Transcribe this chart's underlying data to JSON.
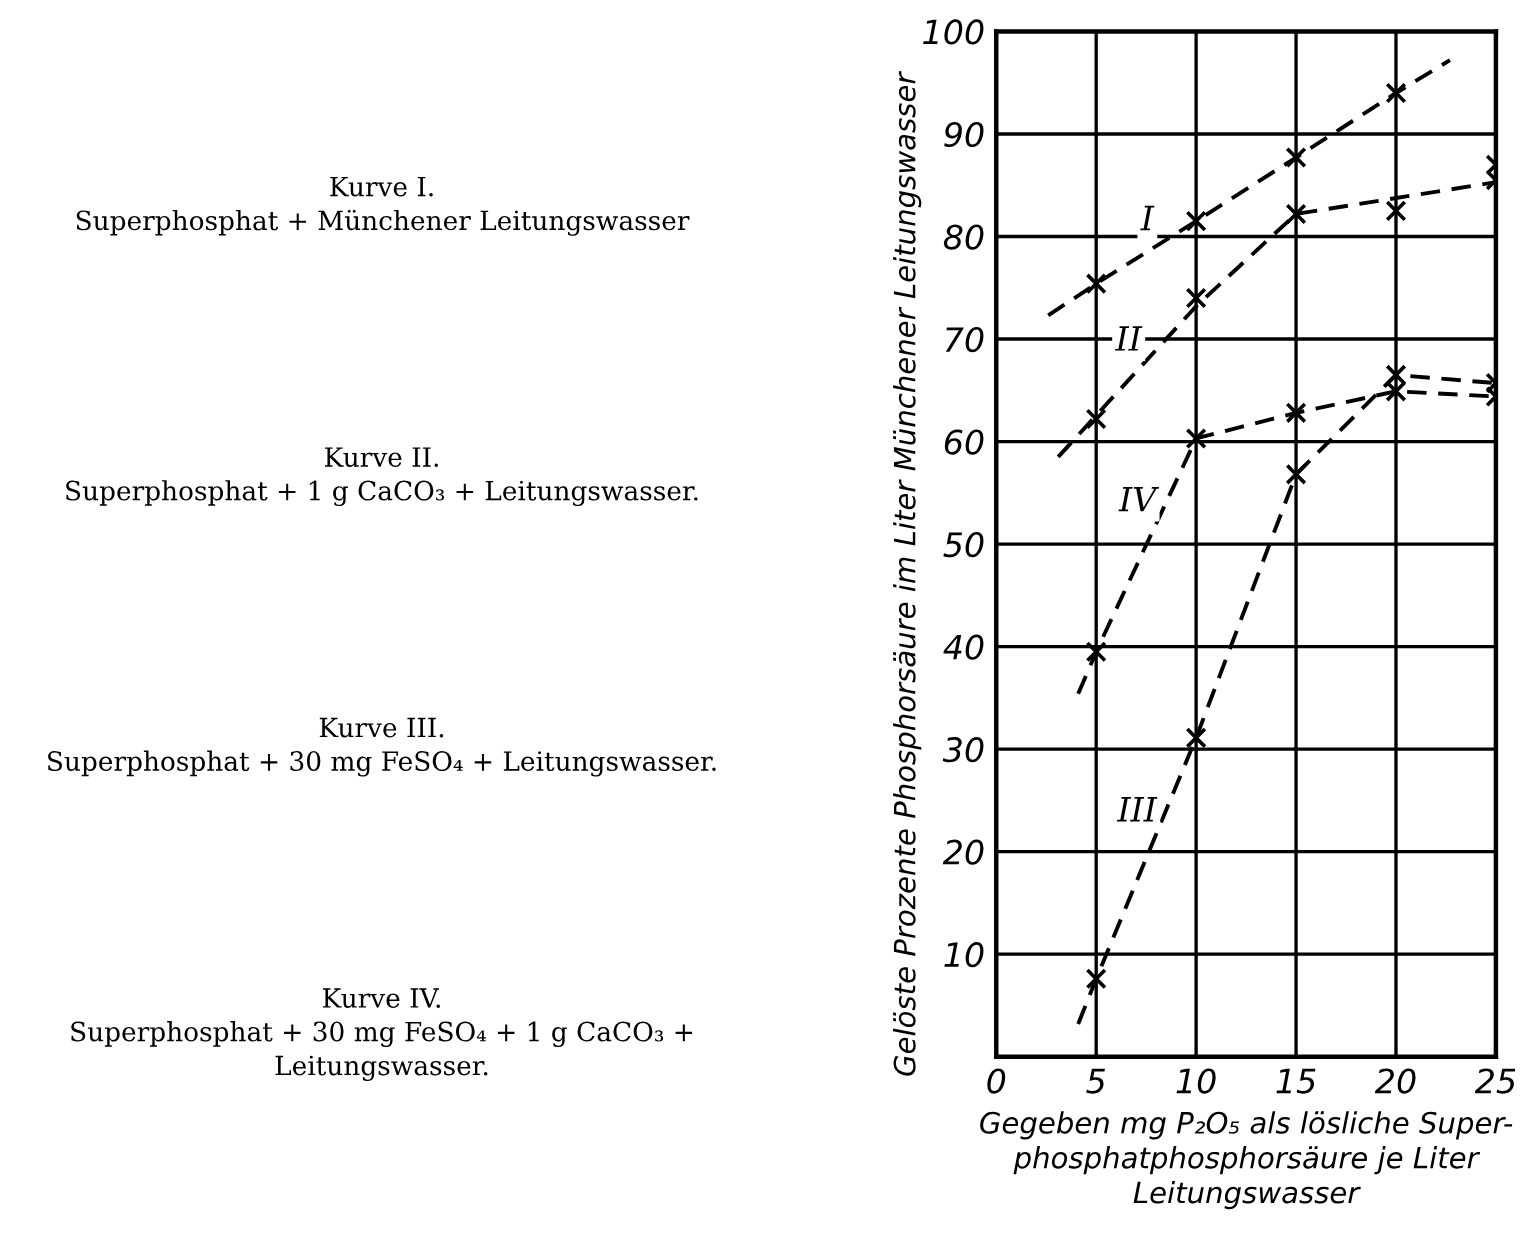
{
  "chart_data": {
    "type": "line",
    "xlabel": "Gegeben mg P₂O₅ als lösliche Super-\nphosphatphosphorsäure je Liter\nLeitungswasser",
    "ylabel": "Gelöste Prozente Phosphorsäure im Liter Münchener Leitungswasser",
    "xlim": [
      0,
      25
    ],
    "xticks": [
      0,
      5,
      10,
      15,
      20,
      25
    ],
    "ylim": [
      0,
      100
    ],
    "yticks": [
      10,
      20,
      30,
      40,
      50,
      60,
      70,
      80,
      90,
      100
    ],
    "grid": true,
    "legend": false,
    "series": [
      {
        "name": "I",
        "line_style": "dashed",
        "color": "#000000",
        "x": [
          2.6,
          5,
          10,
          15,
          20,
          22.7
        ],
        "values": [
          72.3,
          75.4,
          81.5,
          87.7,
          94,
          97.2
        ]
      },
      {
        "type": "scatter",
        "marker": "cross",
        "color": "#000000",
        "x": [
          5,
          10,
          15,
          20,
          25
        ],
        "values": [
          75.4,
          81.5,
          87.7,
          94,
          87
        ]
      },
      {
        "name": "II",
        "line_style": "dashed",
        "color": "#000000",
        "x": [
          3.1,
          10,
          15,
          25
        ],
        "values": [
          58.5,
          73.2,
          82.2,
          85.3
        ]
      },
      {
        "type": "scatter",
        "marker": "cross",
        "color": "#000000",
        "x": [
          5,
          10,
          15,
          20,
          25
        ],
        "values": [
          62.2,
          74,
          82.2,
          82.5,
          85.5
        ]
      },
      {
        "name": "III",
        "line_style": "dashed",
        "color": "#000000",
        "x": [
          4.1,
          5,
          10,
          15,
          20,
          25
        ],
        "values": [
          3.2,
          7.6,
          31.1,
          56.8,
          66.5,
          65.7
        ]
      },
      {
        "type": "scatter",
        "marker": "cross",
        "color": "#000000",
        "x": [
          5,
          10,
          15,
          20,
          25
        ],
        "values": [
          7.6,
          31.1,
          56.8,
          66.5,
          65.7
        ]
      },
      {
        "name": "IV",
        "line_style": "dashed",
        "color": "#000000",
        "x": [
          4.1,
          5,
          10,
          15,
          20,
          25
        ],
        "values": [
          35.4,
          39.5,
          60.3,
          62.8,
          64.9,
          64.4
        ]
      },
      {
        "type": "scatter",
        "marker": "cross",
        "color": "#000000",
        "x": [
          5,
          10,
          15,
          20,
          25
        ],
        "values": [
          39.5,
          60.3,
          62.8,
          64.9,
          64.4
        ]
      }
    ],
    "annotations": [
      "Kurve I.\nSuperphosphat + Münchener Leitungswasser",
      "Kurve II.\nSuperphosphat + 1 g CaCO₃ + Leitungswasser.",
      "Kurve III.\nSuperphosphat + 30 mg FeSO₄ + Leitungswasser.",
      "Kurve IV.\nSuperphosphat + 30 mg FeSO₄ + 1 g CaCO₃ +\nLeitungswasser."
    ]
  }
}
